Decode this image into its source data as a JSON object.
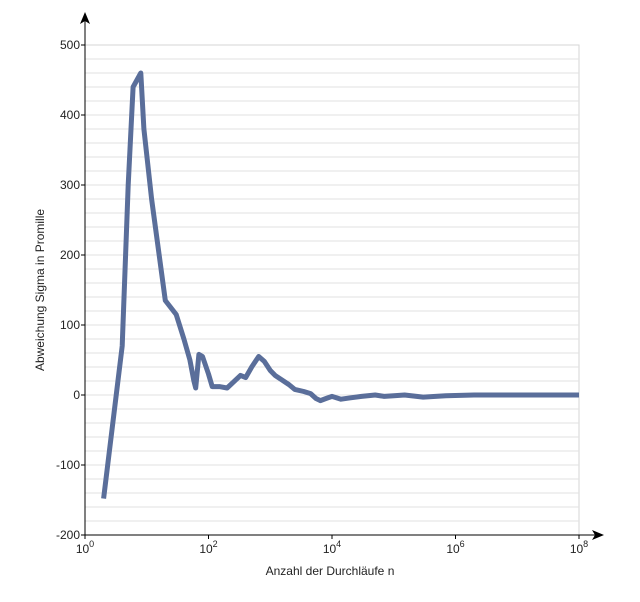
{
  "chart_data": {
    "type": "line",
    "title": "",
    "xlabel": "Anzahl der Durchläufe n",
    "ylabel": "Abweichung Sigma in Promille",
    "x_scale": "log",
    "xlim": [
      1,
      100000000
    ],
    "ylim": [
      -200,
      500
    ],
    "x_ticks": [
      {
        "value": 1,
        "base": "10",
        "exp": "0"
      },
      {
        "value": 100,
        "base": "10",
        "exp": "2"
      },
      {
        "value": 10000,
        "base": "10",
        "exp": "4"
      },
      {
        "value": 1000000,
        "base": "10",
        "exp": "6"
      },
      {
        "value": 100000000,
        "base": "10",
        "exp": "8"
      }
    ],
    "y_ticks": [
      {
        "value": 500,
        "label": "500"
      },
      {
        "value": 400,
        "label": "400"
      },
      {
        "value": 300,
        "label": "300"
      },
      {
        "value": 200,
        "label": "200"
      },
      {
        "value": 100,
        "label": "100"
      },
      {
        "value": 0,
        "label": "0"
      },
      {
        "value": -100,
        "label": "-100"
      },
      {
        "value": -200,
        "label": "-200"
      }
    ],
    "y_grid_step": 20,
    "grid": true,
    "series": [
      {
        "color": "#5a6e9a",
        "points": [
          [
            2,
            -148
          ],
          [
            4,
            70
          ],
          [
            5,
            300
          ],
          [
            6,
            440
          ],
          [
            8,
            460
          ],
          [
            9,
            380
          ],
          [
            12,
            280
          ],
          [
            20,
            135
          ],
          [
            30,
            115
          ],
          [
            40,
            80
          ],
          [
            50,
            50
          ],
          [
            58,
            20
          ],
          [
            62,
            10
          ],
          [
            70,
            58
          ],
          [
            80,
            55
          ],
          [
            100,
            30
          ],
          [
            115,
            12
          ],
          [
            150,
            12
          ],
          [
            200,
            10
          ],
          [
            280,
            22
          ],
          [
            330,
            28
          ],
          [
            400,
            25
          ],
          [
            500,
            40
          ],
          [
            650,
            55
          ],
          [
            800,
            48
          ],
          [
            1000,
            35
          ],
          [
            1200,
            28
          ],
          [
            2000,
            15
          ],
          [
            2500,
            8
          ],
          [
            3500,
            5
          ],
          [
            4500,
            2
          ],
          [
            5500,
            -5
          ],
          [
            6500,
            -8
          ],
          [
            8000,
            -5
          ],
          [
            10000,
            -2
          ],
          [
            14000,
            -6
          ],
          [
            20000,
            -4
          ],
          [
            30000,
            -2
          ],
          [
            50000,
            0
          ],
          [
            70000,
            -2
          ],
          [
            100000,
            -1
          ],
          [
            150000,
            0
          ],
          [
            300000,
            -3
          ],
          [
            700000,
            -1
          ],
          [
            2000000,
            0
          ],
          [
            10000000,
            0
          ],
          [
            100000000,
            0
          ]
        ]
      }
    ]
  }
}
